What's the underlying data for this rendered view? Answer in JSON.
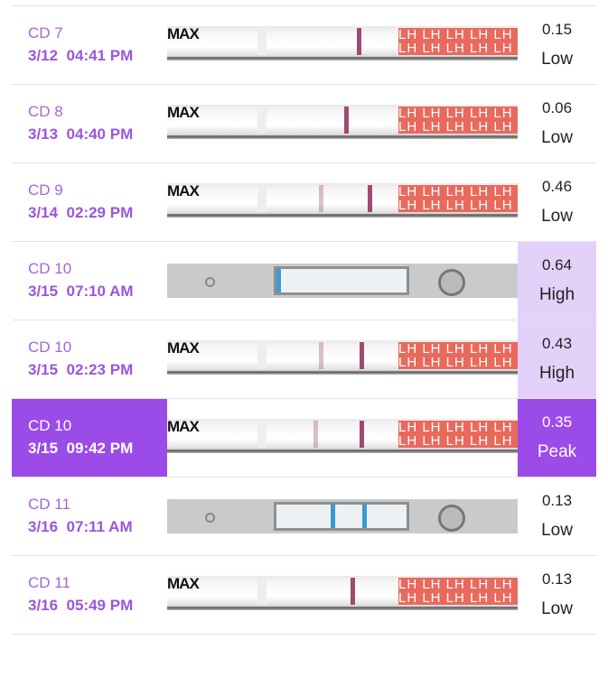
{
  "colors": {
    "accent": "#9b4be8",
    "accent_light": "#e3d1fa"
  },
  "rows": [
    {
      "cd": "CD 7",
      "datetime": "3/12  04:41 PM",
      "value": "0.15",
      "level": "Low",
      "test": "strip"
    },
    {
      "cd": "CD 8",
      "datetime": "3/13  04:40 PM",
      "value": "0.06",
      "level": "Low",
      "test": "strip"
    },
    {
      "cd": "CD 9",
      "datetime": "3/14  02:29 PM",
      "value": "0.46",
      "level": "Low",
      "test": "strip"
    },
    {
      "cd": "CD 10",
      "datetime": "3/15  07:10 AM",
      "value": "0.64",
      "level": "High",
      "test": "cassette"
    },
    {
      "cd": "CD 10",
      "datetime": "3/15  02:23 PM",
      "value": "0.43",
      "level": "High",
      "test": "strip"
    },
    {
      "cd": "CD 10",
      "datetime": "3/15  09:42 PM",
      "value": "0.35",
      "level": "Peak",
      "test": "strip",
      "selected": true
    },
    {
      "cd": "CD 11",
      "datetime": "3/16  07:11 AM",
      "value": "0.13",
      "level": "Low",
      "test": "cassette"
    },
    {
      "cd": "CD 11",
      "datetime": "3/16  05:49 PM",
      "value": "0.13",
      "level": "Low",
      "test": "strip"
    }
  ],
  "strip_labels": {
    "brand": "MAX",
    "pad": "LH"
  }
}
